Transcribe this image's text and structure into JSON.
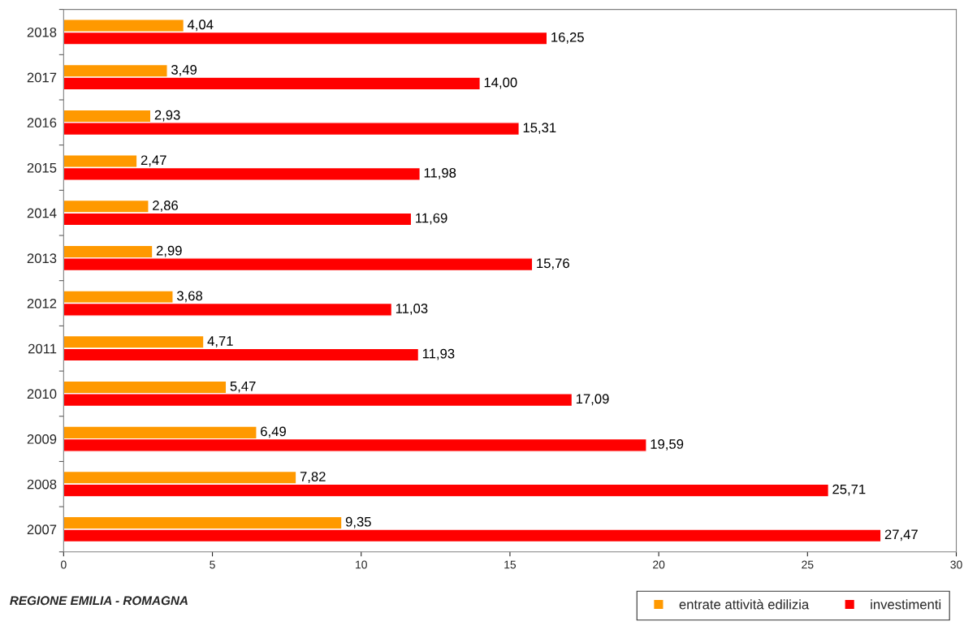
{
  "chart_data": {
    "type": "bar",
    "orientation": "horizontal",
    "categories": [
      "2018",
      "2017",
      "2016",
      "2015",
      "2014",
      "2013",
      "2012",
      "2011",
      "2010",
      "2009",
      "2008",
      "2007"
    ],
    "series": [
      {
        "name": "entrate attività edilizia",
        "color": "#ff9900",
        "values": [
          4.04,
          3.49,
          2.93,
          2.47,
          2.86,
          2.99,
          3.68,
          4.71,
          5.47,
          6.49,
          7.82,
          9.35
        ],
        "value_labels": [
          "4,04",
          "3,49",
          "2,93",
          "2,47",
          "2,86",
          "2,99",
          "3,68",
          "4,71",
          "5,47",
          "6,49",
          "7,82",
          "9,35"
        ]
      },
      {
        "name": "investimenti",
        "color": "#ff0000",
        "values": [
          16.25,
          14.0,
          15.31,
          11.98,
          11.69,
          15.76,
          11.03,
          11.93,
          17.09,
          19.59,
          25.71,
          27.47
        ],
        "value_labels": [
          "16,25",
          "14,00",
          "15,31",
          "11,98",
          "11,69",
          "15,76",
          "11,03",
          "11,93",
          "17,09",
          "19,59",
          "25,71",
          "27,47"
        ]
      }
    ],
    "xlim": [
      0,
      30
    ],
    "xticks": [
      0,
      5,
      10,
      15,
      20,
      25,
      30
    ],
    "annotations": [
      "REGIONE EMILIA - ROMAGNA"
    ],
    "legend": "bottom right",
    "grid": false
  }
}
